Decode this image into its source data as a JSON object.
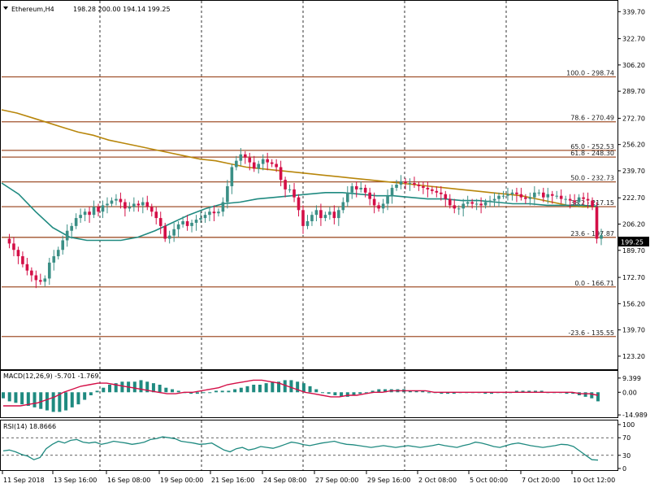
{
  "header": {
    "menu_icon": "triangle-down-icon",
    "symbol_timeframe": "Ethereum,H4",
    "ohlc": "198.28 200.00 194.14 199.25"
  },
  "main_price_axis": {
    "ticks": [
      "339.70",
      "322.70",
      "306.20",
      "289.70",
      "272.70",
      "256.20",
      "239.70",
      "222.70",
      "206.20",
      "189.70",
      "172.70",
      "156.20",
      "139.70",
      "123.20"
    ],
    "current_price_label": "199.25"
  },
  "fib_levels": [
    {
      "label": "100.0 - 298.74",
      "value": 298.74
    },
    {
      "label": "78.6 - 270.49",
      "value": 270.49
    },
    {
      "label": "65.0 - 252.53",
      "value": 252.53
    },
    {
      "label": "61.8 - 248.30",
      "value": 248.3
    },
    {
      "label": "50.0 - 232.73",
      "value": 232.73
    },
    {
      "label": "38.2 - 217.15",
      "value": 217.15
    },
    {
      "label": "23.6 - 197.87",
      "value": 197.87
    },
    {
      "label": "0.0 - 166.71",
      "value": 166.71
    },
    {
      "label": "-23.6 - 135.55",
      "value": 135.55
    }
  ],
  "macd_panel": {
    "label": "MACD(12,26,9) -5.701 -1.769",
    "ticks": [
      "9.399",
      "0.00",
      "-14.989"
    ]
  },
  "rsi_panel": {
    "label": "RSI(14) 18.8666",
    "ticks": [
      "100",
      "70",
      "30",
      "0"
    ]
  },
  "time_axis": {
    "labels": [
      "11 Sep 2018",
      "13 Sep 16:00",
      "16 Sep 08:00",
      "19 Sep 00:00",
      "21 Sep 16:00",
      "24 Sep 08:00",
      "27 Sep 00:00",
      "29 Sep 16:00",
      "2 Oct 08:00",
      "5 Oct 00:00",
      "7 Oct 20:00",
      "10 Oct 12:00"
    ]
  },
  "colors": {
    "bull_candle": "#3b8f86",
    "bear_candle": "#d40f47",
    "fib_line": "#a0522d",
    "ma_slow": "#b8860b",
    "ma_fast": "#1f8a80",
    "macd_hist": "#1f8a80",
    "macd_signal": "#d40f47",
    "rsi_line": "#1f8a80",
    "grid": "#000000"
  },
  "chart_data": {
    "type": "candlestick",
    "title": "Ethereum,H4",
    "ohlc_last": {
      "open": 198.28,
      "high": 200.0,
      "low": 194.14,
      "close": 199.25
    },
    "ylim": [
      116,
      346
    ],
    "close_series": [
      197,
      194,
      190,
      186,
      181,
      177,
      174,
      171,
      170,
      172,
      182,
      186,
      190,
      196,
      202,
      205,
      210,
      212,
      214,
      212,
      217,
      214,
      218,
      219,
      221,
      222,
      220,
      216,
      217,
      219,
      218,
      220,
      217,
      214,
      210,
      205,
      197,
      199,
      203,
      206,
      208,
      205,
      207,
      209,
      210,
      212,
      214,
      213,
      214,
      220,
      230,
      242,
      246,
      250,
      248,
      245,
      241,
      244,
      247,
      245,
      244,
      242,
      234,
      228,
      228,
      223,
      215,
      205,
      208,
      212,
      215,
      210,
      212,
      214,
      210,
      215,
      220,
      226,
      230,
      228,
      229,
      226,
      222,
      218,
      216,
      219,
      224,
      229,
      231,
      233,
      232,
      232,
      231,
      230,
      229,
      228,
      227,
      226,
      225,
      222,
      218,
      216,
      216,
      219,
      220,
      219,
      219,
      218,
      220,
      221,
      222,
      224,
      224,
      225,
      226,
      225,
      223,
      222,
      223,
      226,
      226,
      223,
      225,
      224,
      224,
      222,
      222,
      221,
      220,
      223,
      222,
      221,
      217,
      197,
      199.25
    ],
    "ma_slow": [
      278,
      276,
      273,
      270,
      267,
      264,
      262,
      259,
      257,
      255,
      253,
      251,
      249,
      247,
      246,
      244,
      242,
      241,
      240,
      239,
      238,
      237,
      236,
      235,
      234,
      233,
      232,
      231,
      230,
      229,
      228,
      227,
      226,
      225,
      224,
      222,
      220,
      218,
      217,
      217.15
    ],
    "ma_fast": [
      232,
      225,
      214,
      204,
      198,
      196,
      196,
      196,
      198,
      202,
      207,
      212,
      216,
      219,
      220,
      222,
      223,
      224,
      225,
      226,
      226,
      225,
      224,
      224,
      223,
      222,
      222,
      221,
      221,
      220,
      219,
      219,
      218,
      218,
      218,
      217.5
    ],
    "macd_hist": [
      -4,
      -6,
      -7,
      -8,
      -9,
      -10,
      -11,
      -12,
      -13,
      -13,
      -12,
      -10,
      -8,
      -5,
      -2,
      1,
      3,
      5,
      6,
      7,
      7,
      7,
      8,
      7,
      6,
      5,
      3,
      2,
      1,
      0,
      -1,
      -1,
      0,
      0,
      1,
      1,
      1,
      2,
      3,
      4,
      5,
      5,
      6,
      7,
      7,
      8,
      8,
      7,
      6,
      4,
      2,
      0,
      -1,
      -2,
      -3,
      -3,
      -2,
      -1,
      0,
      1,
      2,
      2,
      2,
      2,
      2,
      1,
      1,
      1,
      0,
      0,
      -1,
      -1,
      -1,
      0,
      0,
      0,
      0,
      -1,
      -1,
      0,
      0,
      0,
      1,
      1,
      1,
      1,
      1,
      0,
      0,
      0,
      -1,
      -1,
      -2,
      -3,
      -4,
      -6
    ],
    "macd_signal": [
      -9,
      -9,
      -9,
      -8,
      -7,
      -5,
      -3,
      0,
      2,
      4,
      5,
      6,
      6,
      5,
      4,
      3,
      2,
      1,
      0,
      -1,
      -1,
      0,
      0,
      1,
      2,
      3,
      5,
      6,
      7,
      8,
      8,
      7,
      6,
      4,
      2,
      0,
      -1,
      -2,
      -3,
      -3,
      -2,
      -2,
      -1,
      0,
      0,
      1,
      1,
      1,
      1,
      1,
      0,
      0,
      0,
      0,
      0,
      0,
      0,
      0,
      0,
      0,
      0,
      0,
      0,
      0,
      0,
      0,
      0,
      -1,
      -1,
      -2
    ],
    "rsi": [
      40,
      42,
      38,
      32,
      28,
      20,
      25,
      45,
      55,
      62,
      58,
      64,
      66,
      60,
      58,
      60,
      55,
      58,
      62,
      60,
      58,
      55,
      57,
      60,
      66,
      68,
      72,
      70,
      68,
      62,
      60,
      58,
      55,
      56,
      58,
      50,
      42,
      38,
      45,
      48,
      42,
      45,
      50,
      48,
      46,
      50,
      55,
      60,
      58,
      54,
      52,
      55,
      58,
      60,
      62,
      58,
      55,
      54,
      52,
      50,
      48,
      50,
      52,
      50,
      48,
      50,
      52,
      50,
      48,
      50,
      52,
      55,
      52,
      50,
      48,
      52,
      55,
      60,
      58,
      54,
      50,
      48,
      52,
      56,
      58,
      55,
      52,
      50,
      48,
      50,
      52,
      55,
      54,
      50,
      40,
      30,
      20,
      19
    ]
  }
}
